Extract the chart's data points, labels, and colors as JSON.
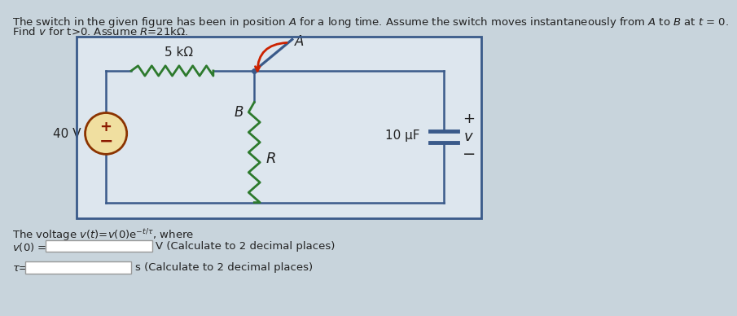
{
  "bg_color": "#c8d4dc",
  "circuit_bg": "#dde6ee",
  "box_color": "#3a5a8a",
  "wire_color": "#3a5a8a",
  "resistor_color_top": "#2d7a2d",
  "resistor_color_bot": "#2d7a2d",
  "cap_color": "#3a5a8a",
  "switch_color": "#3a5a8a",
  "switch_arrow_color": "#cc2200",
  "vs_edge_color": "#8B3300",
  "vs_face_color": "#f0dfa0",
  "vs_text_color": "#8B1a00",
  "text_color": "#222222",
  "input_box_color": "#ffffff",
  "input_box_edge": "#999999",
  "header1": "The switch in the given figure has been in position $A$ for a long time. Assume the switch moves instantaneously from $A$ to $B$ at $t$ = 0.",
  "header2": "Find $v$ for t>0. Assume $R$=21kΩ.",
  "formula": "The voltage $v(t)$=$v(0)$e$^{-t/\\tau}$, where",
  "v0_label": "$v(0)$ =",
  "v0_unit": "V (Calculate to 2 decimal places)",
  "tau_label": "$\\tau$=",
  "tau_unit": "s (Calculate to 2 decimal places)",
  "r_top_label": "5 kΩ",
  "r_bot_label": "$R$",
  "cap_label": "10 μF",
  "v_label": "$v$",
  "vs_label": "40 V",
  "switch_A": "A",
  "switch_B": "B"
}
